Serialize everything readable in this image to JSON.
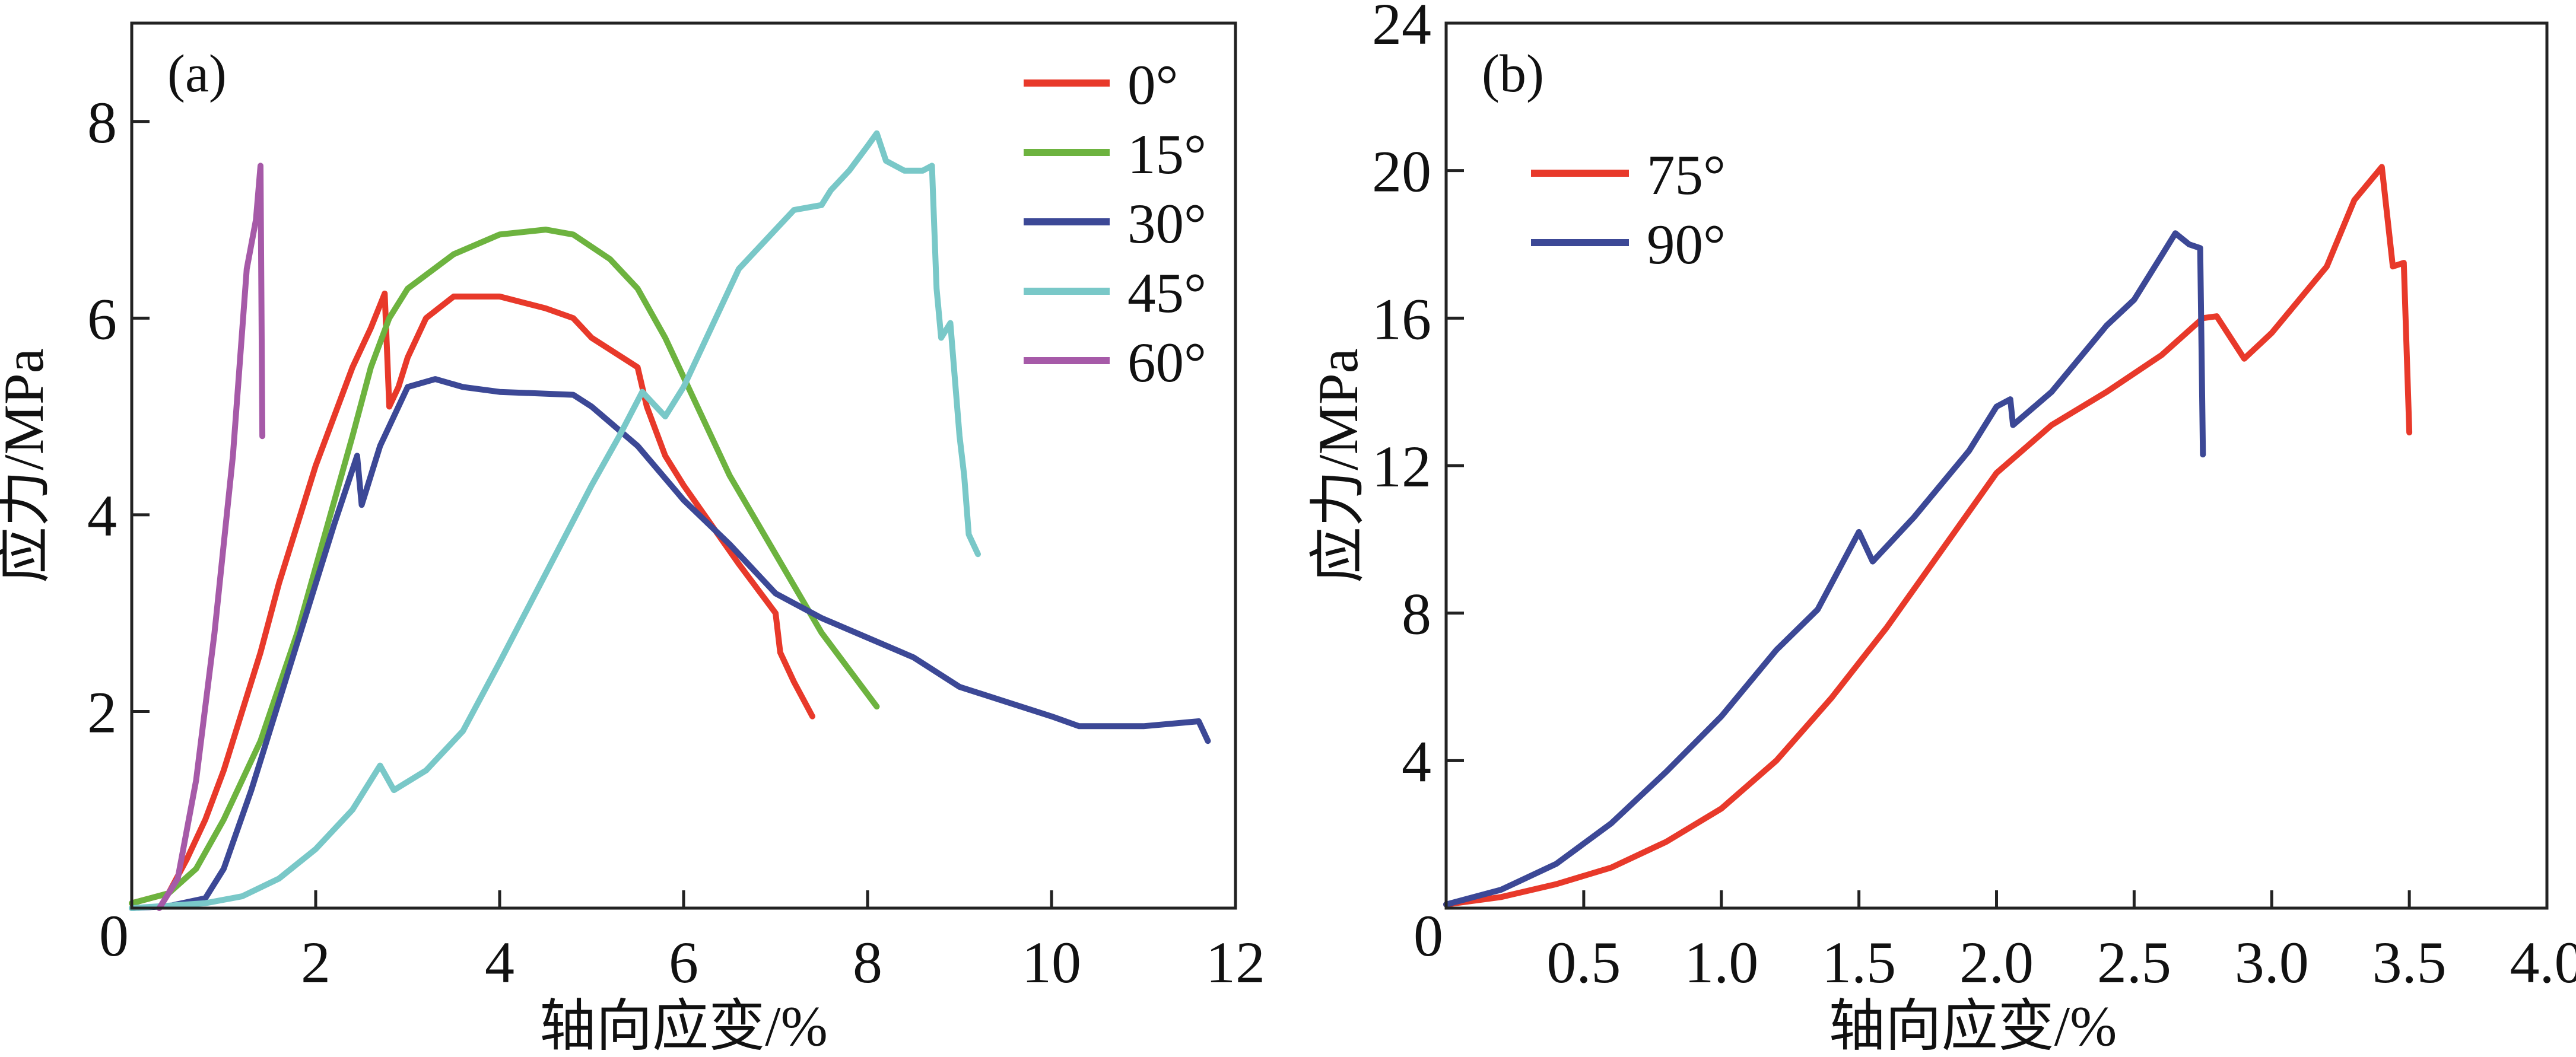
{
  "chart_data": [
    {
      "type": "line",
      "panel_label": "(a)",
      "xlabel": "轴向应变/%",
      "ylabel": "应力/MPa",
      "xlim": [
        0,
        12
      ],
      "ylim": [
        0,
        9
      ],
      "xticks": [
        0,
        2,
        4,
        6,
        8,
        10,
        12
      ],
      "yticks": [
        2,
        4,
        6,
        8
      ],
      "grid": false,
      "legend_position": "top-right",
      "series": [
        {
          "name": "0°",
          "color": "#e8392a",
          "points": [
            [
              0,
              0.05
            ],
            [
              0.4,
              0.15
            ],
            [
              0.6,
              0.5
            ],
            [
              0.8,
              0.9
            ],
            [
              1.0,
              1.4
            ],
            [
              1.2,
              2.0
            ],
            [
              1.4,
              2.6
            ],
            [
              1.6,
              3.3
            ],
            [
              1.8,
              3.9
            ],
            [
              2.0,
              4.5
            ],
            [
              2.2,
              5.0
            ],
            [
              2.4,
              5.5
            ],
            [
              2.6,
              5.9
            ],
            [
              2.75,
              6.25
            ],
            [
              2.8,
              5.1
            ],
            [
              2.9,
              5.3
            ],
            [
              3.0,
              5.6
            ],
            [
              3.2,
              6.0
            ],
            [
              3.5,
              6.22
            ],
            [
              4.0,
              6.22
            ],
            [
              4.5,
              6.1
            ],
            [
              4.8,
              6.0
            ],
            [
              5.0,
              5.8
            ],
            [
              5.5,
              5.5
            ],
            [
              5.6,
              5.1
            ],
            [
              5.8,
              4.6
            ],
            [
              6.0,
              4.3
            ],
            [
              6.3,
              3.9
            ],
            [
              6.6,
              3.5
            ],
            [
              7.0,
              3.0
            ],
            [
              7.05,
              2.6
            ],
            [
              7.2,
              2.3
            ],
            [
              7.4,
              1.95
            ]
          ]
        },
        {
          "name": "15°",
          "color": "#6db33f",
          "points": [
            [
              0,
              0.05
            ],
            [
              0.4,
              0.15
            ],
            [
              0.7,
              0.4
            ],
            [
              1.0,
              0.9
            ],
            [
              1.4,
              1.7
            ],
            [
              1.8,
              2.8
            ],
            [
              2.1,
              3.8
            ],
            [
              2.4,
              4.8
            ],
            [
              2.6,
              5.5
            ],
            [
              2.8,
              6.0
            ],
            [
              3.0,
              6.3
            ],
            [
              3.5,
              6.65
            ],
            [
              4.0,
              6.85
            ],
            [
              4.5,
              6.9
            ],
            [
              4.8,
              6.85
            ],
            [
              5.2,
              6.6
            ],
            [
              5.5,
              6.3
            ],
            [
              5.8,
              5.8
            ],
            [
              6.1,
              5.2
            ],
            [
              6.5,
              4.4
            ],
            [
              7.0,
              3.6
            ],
            [
              7.5,
              2.8
            ],
            [
              8.1,
              2.05
            ]
          ]
        },
        {
          "name": "30°",
          "color": "#3c4896",
          "points": [
            [
              0,
              0
            ],
            [
              0.4,
              0.02
            ],
            [
              0.8,
              0.1
            ],
            [
              1.0,
              0.4
            ],
            [
              1.3,
              1.2
            ],
            [
              1.6,
              2.1
            ],
            [
              1.9,
              3.0
            ],
            [
              2.2,
              3.9
            ],
            [
              2.45,
              4.6
            ],
            [
              2.5,
              4.1
            ],
            [
              2.7,
              4.7
            ],
            [
              2.9,
              5.1
            ],
            [
              3.0,
              5.3
            ],
            [
              3.3,
              5.38
            ],
            [
              3.6,
              5.3
            ],
            [
              4.0,
              5.25
            ],
            [
              4.8,
              5.22
            ],
            [
              5.0,
              5.1
            ],
            [
              5.5,
              4.7
            ],
            [
              6.0,
              4.15
            ],
            [
              6.5,
              3.7
            ],
            [
              7.0,
              3.2
            ],
            [
              7.5,
              2.95
            ],
            [
              8.0,
              2.75
            ],
            [
              8.5,
              2.55
            ],
            [
              9.0,
              2.25
            ],
            [
              9.5,
              2.1
            ],
            [
              10.0,
              1.95
            ],
            [
              10.3,
              1.85
            ],
            [
              11.0,
              1.85
            ],
            [
              11.6,
              1.9
            ],
            [
              11.7,
              1.7
            ]
          ]
        },
        {
          "name": "45°",
          "color": "#79c8c8",
          "points": [
            [
              0,
              0
            ],
            [
              0.8,
              0.05
            ],
            [
              1.2,
              0.12
            ],
            [
              1.6,
              0.3
            ],
            [
              2.0,
              0.6
            ],
            [
              2.4,
              1.0
            ],
            [
              2.7,
              1.45
            ],
            [
              2.85,
              1.2
            ],
            [
              3.2,
              1.4
            ],
            [
              3.6,
              1.8
            ],
            [
              4.0,
              2.5
            ],
            [
              4.5,
              3.4
            ],
            [
              5.0,
              4.3
            ],
            [
              5.3,
              4.8
            ],
            [
              5.55,
              5.25
            ],
            [
              5.8,
              5.0
            ],
            [
              6.0,
              5.3
            ],
            [
              6.3,
              5.9
            ],
            [
              6.6,
              6.5
            ],
            [
              7.0,
              6.9
            ],
            [
              7.2,
              7.1
            ],
            [
              7.5,
              7.15
            ],
            [
              7.6,
              7.3
            ],
            [
              7.8,
              7.5
            ],
            [
              8.0,
              7.75
            ],
            [
              8.1,
              7.88
            ],
            [
              8.2,
              7.6
            ],
            [
              8.4,
              7.5
            ],
            [
              8.6,
              7.5
            ],
            [
              8.7,
              7.55
            ],
            [
              8.75,
              6.3
            ],
            [
              8.8,
              5.8
            ],
            [
              8.9,
              5.95
            ],
            [
              9.0,
              4.8
            ],
            [
              9.05,
              4.4
            ],
            [
              9.1,
              3.8
            ],
            [
              9.2,
              3.6
            ]
          ]
        },
        {
          "name": "60°",
          "color": "#a65aa8",
          "points": [
            [
              0.3,
              0
            ],
            [
              0.5,
              0.3
            ],
            [
              0.7,
              1.3
            ],
            [
              0.9,
              2.8
            ],
            [
              1.1,
              4.6
            ],
            [
              1.25,
              6.5
            ],
            [
              1.35,
              7.0
            ],
            [
              1.4,
              7.55
            ],
            [
              1.42,
              4.8
            ]
          ]
        }
      ]
    },
    {
      "type": "line",
      "panel_label": "(b)",
      "xlabel": "轴向应变/%",
      "ylabel": "应力/MPa",
      "xlim": [
        0,
        4.0
      ],
      "ylim": [
        0,
        24
      ],
      "xticks": [
        "0",
        "0.5",
        "1.0",
        "1.5",
        "2.0",
        "2.5",
        "3.0",
        "3.5",
        "4.0"
      ],
      "yticks": [
        4,
        8,
        12,
        16,
        20,
        24
      ],
      "grid": false,
      "legend_position": "top-left",
      "series": [
        {
          "name": "75°",
          "color": "#e8392a",
          "points": [
            [
              0,
              0.1
            ],
            [
              0.2,
              0.3
            ],
            [
              0.4,
              0.65
            ],
            [
              0.6,
              1.1
            ],
            [
              0.8,
              1.8
            ],
            [
              1.0,
              2.7
            ],
            [
              1.2,
              4.0
            ],
            [
              1.4,
              5.7
            ],
            [
              1.6,
              7.6
            ],
            [
              1.8,
              9.7
            ],
            [
              2.0,
              11.8
            ],
            [
              2.2,
              13.1
            ],
            [
              2.4,
              14.0
            ],
            [
              2.6,
              15.0
            ],
            [
              2.75,
              16.0
            ],
            [
              2.8,
              16.05
            ],
            [
              2.9,
              14.9
            ],
            [
              3.0,
              15.6
            ],
            [
              3.2,
              17.4
            ],
            [
              3.3,
              19.2
            ],
            [
              3.4,
              20.1
            ],
            [
              3.44,
              17.4
            ],
            [
              3.48,
              17.5
            ],
            [
              3.5,
              12.9
            ]
          ]
        },
        {
          "name": "90°",
          "color": "#3c4896",
          "points": [
            [
              0,
              0.1
            ],
            [
              0.2,
              0.5
            ],
            [
              0.4,
              1.2
            ],
            [
              0.6,
              2.3
            ],
            [
              0.8,
              3.7
            ],
            [
              1.0,
              5.2
            ],
            [
              1.2,
              7.0
            ],
            [
              1.35,
              8.1
            ],
            [
              1.5,
              10.2
            ],
            [
              1.55,
              9.4
            ],
            [
              1.7,
              10.6
            ],
            [
              1.9,
              12.4
            ],
            [
              2.0,
              13.6
            ],
            [
              2.05,
              13.8
            ],
            [
              2.06,
              13.1
            ],
            [
              2.2,
              14.0
            ],
            [
              2.4,
              15.8
            ],
            [
              2.5,
              16.5
            ],
            [
              2.6,
              17.7
            ],
            [
              2.65,
              18.3
            ],
            [
              2.7,
              18.0
            ],
            [
              2.74,
              17.9
            ],
            [
              2.75,
              12.3
            ]
          ]
        }
      ]
    }
  ]
}
